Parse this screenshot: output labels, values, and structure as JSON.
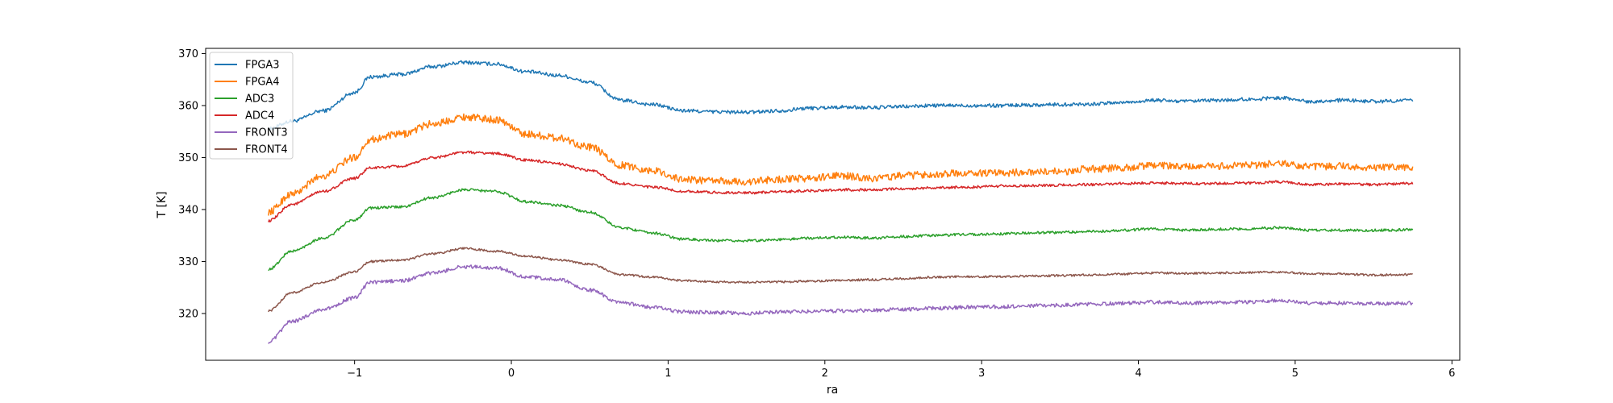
{
  "chart_data": {
    "type": "line",
    "title": "",
    "xlabel": "ra",
    "ylabel": "T [K]",
    "xlim": [
      -1.95,
      6.05
    ],
    "ylim": [
      311,
      371
    ],
    "xticks": [
      -1,
      0,
      1,
      2,
      3,
      4,
      5,
      6
    ],
    "yticks": [
      320,
      330,
      340,
      350,
      360,
      370
    ],
    "xtick_labels": [
      "−1",
      "0",
      "1",
      "2",
      "3",
      "4",
      "5",
      "6"
    ],
    "ytick_labels": [
      "320",
      "330",
      "340",
      "350",
      "360",
      "370"
    ],
    "grid": false,
    "legend_position": "upper left",
    "x": [
      -1.55,
      -1.4,
      -1.2,
      -1.0,
      -0.9,
      -0.7,
      -0.5,
      -0.3,
      -0.1,
      0.1,
      0.3,
      0.5,
      0.7,
      0.9,
      1.1,
      1.3,
      1.5,
      1.7,
      1.9,
      2.1,
      2.3,
      2.5,
      2.7,
      2.9,
      3.1,
      3.3,
      3.5,
      3.7,
      3.9,
      4.1,
      4.3,
      4.5,
      4.7,
      4.9,
      5.1,
      5.3,
      5.5,
      5.75
    ],
    "series": [
      {
        "name": "FPGA3",
        "color": "#1f77b4",
        "noise": 0.35,
        "values": [
          355.5,
          357.0,
          359.0,
          362.5,
          365.5,
          366.0,
          367.5,
          368.3,
          368.0,
          366.5,
          365.8,
          364.5,
          361.0,
          360.2,
          359.0,
          358.8,
          358.7,
          359.0,
          359.5,
          359.7,
          359.6,
          359.8,
          360.0,
          360.0,
          360.0,
          360.1,
          360.2,
          360.3,
          360.6,
          361.0,
          360.8,
          361.0,
          361.2,
          361.5,
          360.8,
          361.0,
          360.8,
          361.0
        ]
      },
      {
        "name": "FPGA4",
        "color": "#ff7f0e",
        "noise": 0.7,
        "values": [
          339.5,
          343.0,
          346.5,
          350.0,
          353.5,
          354.5,
          356.5,
          357.8,
          357.3,
          354.5,
          353.8,
          352.0,
          348.5,
          347.5,
          345.8,
          345.5,
          345.3,
          345.8,
          346.0,
          346.5,
          346.0,
          346.5,
          346.8,
          347.0,
          347.0,
          347.2,
          347.3,
          347.8,
          348.0,
          348.5,
          348.2,
          348.3,
          348.5,
          348.8,
          348.2,
          348.3,
          348.0,
          348.2
        ]
      },
      {
        "name": "ADC3",
        "color": "#2ca02c",
        "noise": 0.25,
        "values": [
          328.5,
          332.0,
          334.5,
          338.0,
          340.3,
          340.5,
          342.3,
          343.8,
          343.5,
          341.5,
          340.8,
          339.5,
          336.5,
          335.5,
          334.3,
          334.0,
          334.0,
          334.2,
          334.5,
          334.7,
          334.5,
          334.8,
          335.0,
          335.2,
          335.3,
          335.5,
          335.6,
          335.8,
          336.0,
          336.3,
          336.0,
          336.2,
          336.3,
          336.5,
          336.0,
          336.0,
          336.0,
          336.1
        ]
      },
      {
        "name": "ADC4",
        "color": "#d62728",
        "noise": 0.25,
        "values": [
          337.8,
          341.0,
          343.5,
          346.0,
          348.0,
          348.3,
          350.0,
          351.0,
          350.8,
          349.5,
          348.8,
          347.5,
          345.0,
          344.3,
          343.5,
          343.3,
          343.2,
          343.4,
          343.6,
          343.8,
          343.8,
          344.0,
          344.2,
          344.3,
          344.5,
          344.6,
          344.7,
          344.8,
          345.0,
          345.1,
          345.0,
          345.0,
          345.1,
          345.3,
          344.8,
          344.9,
          344.8,
          345.0
        ]
      },
      {
        "name": "FRONT3",
        "color": "#9467bd",
        "noise": 0.35,
        "values": [
          314.5,
          318.5,
          320.8,
          323.0,
          326.0,
          326.3,
          327.8,
          329.0,
          328.8,
          327.0,
          326.5,
          324.5,
          322.0,
          321.2,
          320.3,
          320.2,
          320.0,
          320.3,
          320.4,
          320.5,
          320.6,
          320.8,
          321.0,
          321.2,
          321.3,
          321.5,
          321.6,
          321.8,
          322.0,
          322.2,
          322.0,
          322.1,
          322.2,
          322.5,
          322.0,
          322.0,
          321.9,
          322.0
        ]
      },
      {
        "name": "FRONT4",
        "color": "#8c564b",
        "noise": 0.2,
        "values": [
          320.5,
          324.0,
          326.0,
          328.0,
          330.0,
          330.3,
          331.5,
          332.5,
          332.0,
          331.0,
          330.3,
          329.5,
          327.5,
          327.0,
          326.3,
          326.1,
          326.0,
          326.1,
          326.2,
          326.4,
          326.5,
          326.7,
          327.0,
          327.1,
          327.1,
          327.2,
          327.3,
          327.4,
          327.6,
          327.8,
          327.7,
          327.8,
          327.9,
          328.0,
          327.6,
          327.6,
          327.4,
          327.5
        ]
      }
    ]
  }
}
